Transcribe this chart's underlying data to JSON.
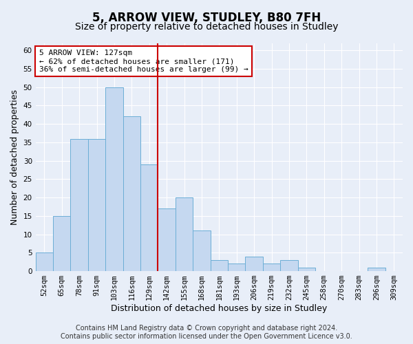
{
  "title": "5, ARROW VIEW, STUDLEY, B80 7FH",
  "subtitle": "Size of property relative to detached houses in Studley",
  "xlabel": "Distribution of detached houses by size in Studley",
  "ylabel": "Number of detached properties",
  "categories": [
    "52sqm",
    "65sqm",
    "78sqm",
    "91sqm",
    "103sqm",
    "116sqm",
    "129sqm",
    "142sqm",
    "155sqm",
    "168sqm",
    "181sqm",
    "193sqm",
    "206sqm",
    "219sqm",
    "232sqm",
    "245sqm",
    "258sqm",
    "270sqm",
    "283sqm",
    "296sqm",
    "309sqm"
  ],
  "values": [
    5,
    15,
    36,
    36,
    50,
    42,
    29,
    17,
    20,
    11,
    3,
    2,
    4,
    2,
    3,
    1,
    0,
    0,
    0,
    1,
    0
  ],
  "bar_color": "#c5d8f0",
  "bar_edge_color": "#6baed6",
  "vline_x_index": 6,
  "vline_color": "#cc0000",
  "annotation_text": "5 ARROW VIEW: 127sqm\n← 62% of detached houses are smaller (171)\n36% of semi-detached houses are larger (99) →",
  "annotation_box_color": "#cc0000",
  "ylim": [
    0,
    62
  ],
  "yticks": [
    0,
    5,
    10,
    15,
    20,
    25,
    30,
    35,
    40,
    45,
    50,
    55,
    60
  ],
  "footer_line1": "Contains HM Land Registry data © Crown copyright and database right 2024.",
  "footer_line2": "Contains public sector information licensed under the Open Government Licence v3.0.",
  "bg_color": "#e8eef8",
  "plot_bg_color": "#e8eef8",
  "grid_color": "#ffffff",
  "title_fontsize": 12,
  "subtitle_fontsize": 10,
  "axis_label_fontsize": 9,
  "tick_fontsize": 7.5,
  "annotation_fontsize": 8,
  "footer_fontsize": 7
}
